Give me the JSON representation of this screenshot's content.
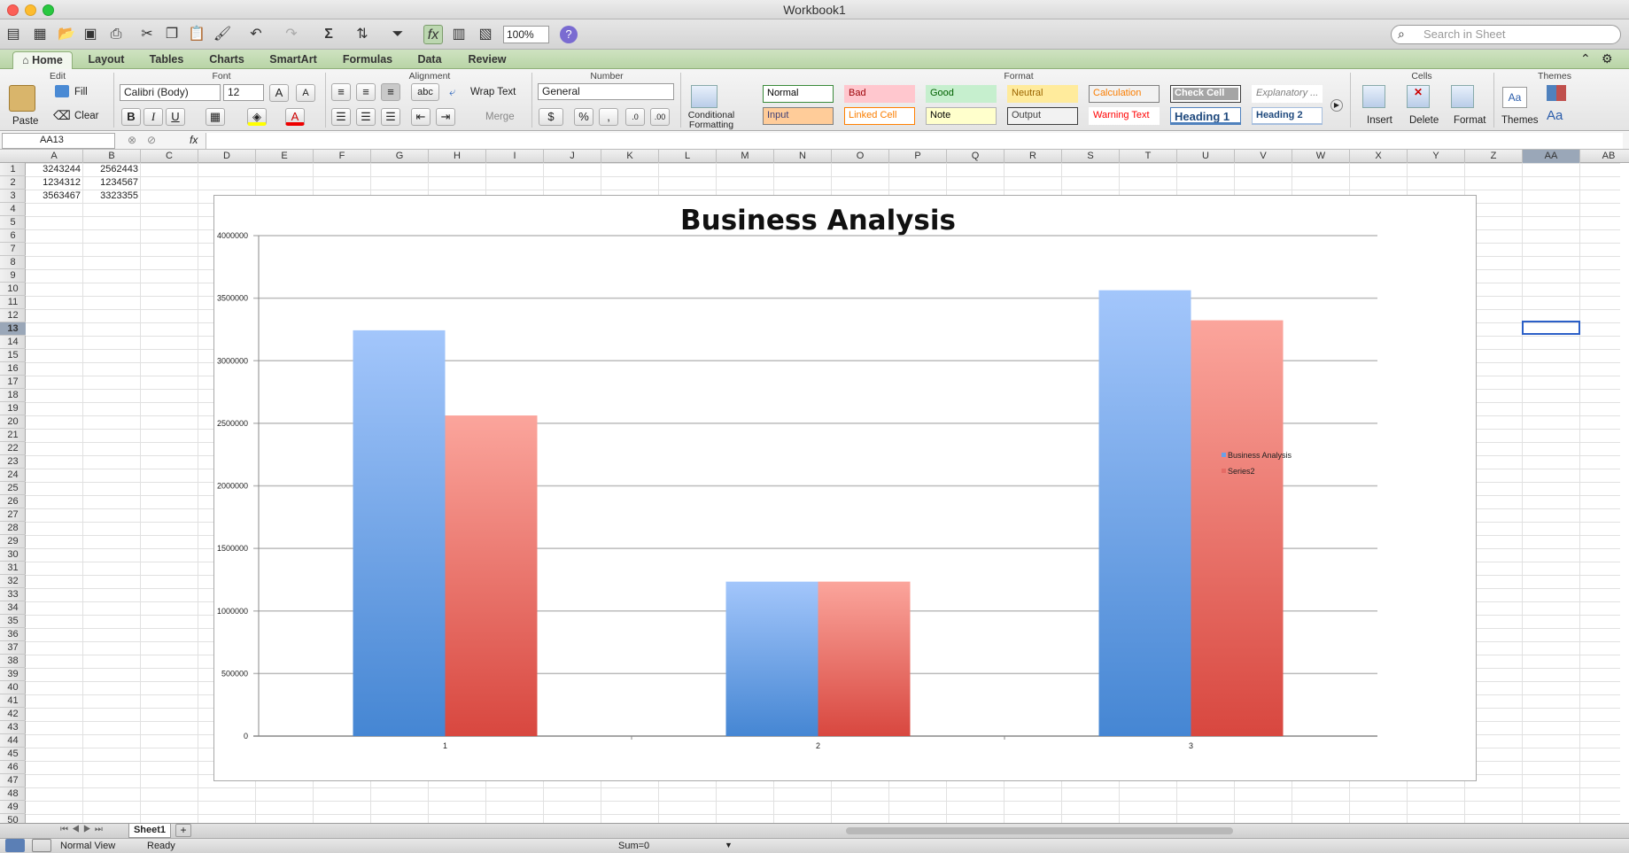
{
  "window": {
    "title": "Workbook1"
  },
  "toolbar": {
    "zoom": "100%",
    "search_placeholder": "Search in Sheet"
  },
  "tabs": [
    "Home",
    "Layout",
    "Tables",
    "Charts",
    "SmartArt",
    "Formulas",
    "Data",
    "Review"
  ],
  "ribbon": {
    "groups": {
      "edit": "Edit",
      "font": "Font",
      "alignment": "Alignment",
      "number": "Number",
      "format": "Format",
      "cells": "Cells",
      "themes": "Themes"
    },
    "paste": "Paste",
    "fill": "Fill",
    "clear": "Clear",
    "font_name": "Calibri (Body)",
    "font_size": "12",
    "wrap_text": "Wrap Text",
    "merge": "Merge",
    "abc": "abc",
    "number_format": "General",
    "percent": "%",
    "comma": ",",
    "conditional_formatting": "Conditional Formatting",
    "styles": [
      {
        "label": "Normal",
        "bg": "#ffffff",
        "fg": "#000000",
        "border": "#3a8a3a"
      },
      {
        "label": "Bad",
        "bg": "#ffc7ce",
        "fg": "#9c0006",
        "border": "#ffc7ce"
      },
      {
        "label": "Good",
        "bg": "#c6efce",
        "fg": "#006100",
        "border": "#c6efce"
      },
      {
        "label": "Neutral",
        "bg": "#ffeb9c",
        "fg": "#9c6500",
        "border": "#ffeb9c"
      },
      {
        "label": "Calculation",
        "bg": "#f2f2f2",
        "fg": "#fa7d00",
        "border": "#7f7f7f"
      },
      {
        "label": "Check Cell",
        "bg": "#a5a5a5",
        "fg": "#ffffff",
        "border": "#3f3f3f"
      },
      {
        "label": "Explanatory ...",
        "bg": "#ffffff",
        "fg": "#7f7f7f",
        "border": "#ffffff"
      },
      {
        "label": "Input",
        "bg": "#ffcc99",
        "fg": "#3f3f76",
        "border": "#7f7f7f"
      },
      {
        "label": "Linked Cell",
        "bg": "#ffffff",
        "fg": "#fa7d00",
        "border": "#ff8001"
      },
      {
        "label": "Note",
        "bg": "#ffffcc",
        "fg": "#000000",
        "border": "#b2b2b2"
      },
      {
        "label": "Output",
        "bg": "#f2f2f2",
        "fg": "#3f3f3f",
        "border": "#3f3f3f"
      },
      {
        "label": "Warning Text",
        "bg": "#ffffff",
        "fg": "#ff0000",
        "border": "#ffffff"
      },
      {
        "label": "Heading 1",
        "bg": "#ffffff",
        "fg": "#1f497d",
        "border": "#4f81bd"
      },
      {
        "label": "Heading 2",
        "bg": "#ffffff",
        "fg": "#1f497d",
        "border": "#a7bfde"
      }
    ],
    "insert": "Insert",
    "delete": "Delete",
    "format": "Format",
    "themes": "Themes",
    "aa": "Aa"
  },
  "formula_bar": {
    "name_box": "AA13",
    "fx": "fx",
    "value": ""
  },
  "columns": [
    "A",
    "B",
    "C",
    "D",
    "E",
    "F",
    "G",
    "H",
    "I",
    "J",
    "K",
    "L",
    "M",
    "N",
    "O",
    "P",
    "Q",
    "R",
    "S",
    "T",
    "U",
    "V",
    "W",
    "X",
    "Y",
    "Z",
    "AA",
    "AB"
  ],
  "rows": [
    "1",
    "2",
    "3",
    "4",
    "5",
    "6",
    "7",
    "8",
    "9",
    "10",
    "11",
    "12",
    "13",
    "14",
    "15",
    "16",
    "17",
    "18",
    "19",
    "20",
    "21",
    "22",
    "23",
    "24",
    "25",
    "26",
    "27",
    "28",
    "29",
    "30",
    "31",
    "32",
    "33",
    "34",
    "35",
    "36",
    "37",
    "38",
    "39",
    "40",
    "41",
    "42",
    "43",
    "44",
    "45",
    "46",
    "47",
    "48",
    "49",
    "50"
  ],
  "cells": [
    [
      "3243244",
      "2562443"
    ],
    [
      "1234312",
      "1234567"
    ],
    [
      "3563467",
      "3323355"
    ]
  ],
  "sheet_tab": "Sheet1",
  "status": {
    "view": "Normal View",
    "ready": "Ready",
    "sum": "Sum=0"
  },
  "colors": {
    "series1": "#6ca0e6",
    "series2": "#e56b65",
    "ribbon_tab": "#c7ddb7"
  },
  "chart_data": {
    "type": "bar",
    "title": "Business Analysis",
    "categories": [
      "1",
      "2",
      "3"
    ],
    "series": [
      {
        "name": "Business Analysis",
        "values": [
          3243244,
          1234312,
          3563467
        ]
      },
      {
        "name": "Series2",
        "values": [
          2562443,
          1234567,
          3323355
        ]
      }
    ],
    "ylim": [
      0,
      4000000
    ],
    "yticks": [
      "0",
      "500000",
      "1000000",
      "1500000",
      "2000000",
      "2500000",
      "3000000",
      "3500000",
      "4000000"
    ],
    "grid": true,
    "legend": "right"
  }
}
